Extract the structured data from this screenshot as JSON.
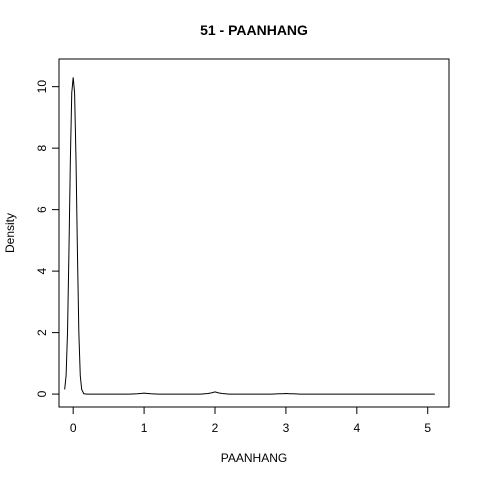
{
  "chart_data": {
    "type": "line",
    "title": "51 - PAANHANG",
    "xlabel": "PAANHANG",
    "ylabel": "Density",
    "xlim": [
      -0.2,
      5.3
    ],
    "ylim": [
      -0.42,
      10.9
    ],
    "x_ticks": [
      0,
      1,
      2,
      3,
      4,
      5
    ],
    "x_tick_labels": [
      "0",
      "1",
      "2",
      "3",
      "4",
      "5"
    ],
    "y_ticks": [
      0,
      2,
      4,
      6,
      8,
      10
    ],
    "y_tick_labels": [
      "0",
      "2",
      "4",
      "6",
      "8",
      "10"
    ],
    "grid": false,
    "legend": "none",
    "line_color": "#000000",
    "series": [
      {
        "x": [
          -0.12,
          -0.1,
          -0.08,
          -0.06,
          -0.04,
          -0.02,
          0.0,
          0.02,
          0.04,
          0.06,
          0.08,
          0.1,
          0.12,
          0.15,
          0.2,
          0.3,
          0.5,
          0.8,
          0.9,
          0.95,
          1.0,
          1.05,
          1.1,
          1.2,
          1.5,
          1.8,
          1.9,
          1.95,
          2.0,
          2.05,
          2.1,
          2.2,
          2.5,
          2.8,
          2.9,
          2.95,
          3.0,
          3.05,
          3.1,
          3.2,
          3.5,
          4.0,
          4.5,
          5.1
        ],
        "values": [
          0.15,
          0.6,
          2.0,
          4.6,
          7.6,
          9.8,
          10.3,
          9.8,
          7.6,
          4.6,
          2.0,
          0.6,
          0.15,
          0.01,
          0.0,
          0.0,
          0.0,
          0.0,
          0.01,
          0.02,
          0.03,
          0.02,
          0.01,
          0.0,
          0.0,
          0.0,
          0.02,
          0.04,
          0.07,
          0.04,
          0.02,
          0.0,
          0.0,
          0.0,
          0.01,
          0.01,
          0.02,
          0.01,
          0.01,
          0.0,
          0.0,
          0.0,
          0.0,
          0.0
        ]
      }
    ]
  }
}
